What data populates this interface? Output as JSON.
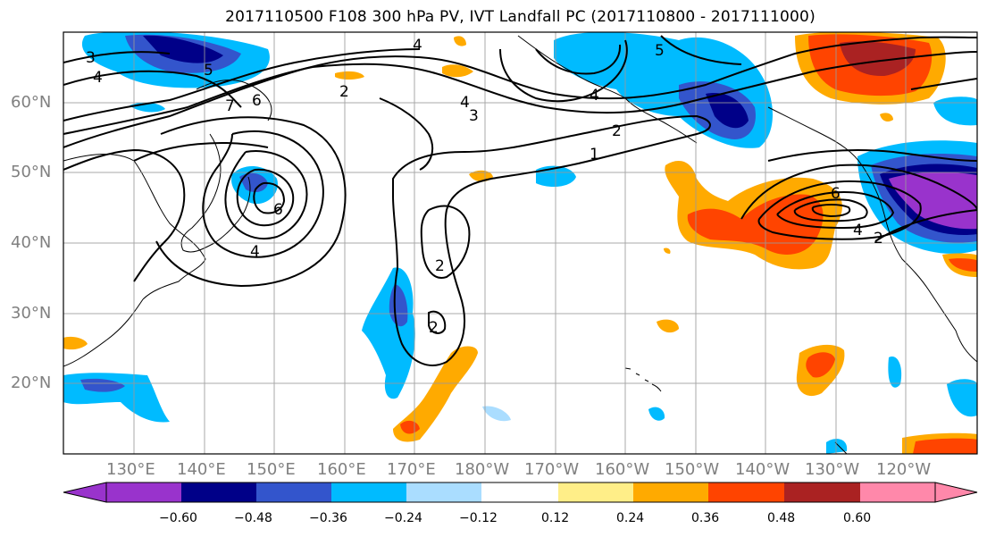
{
  "title": "2017110500 F108 300 hPa PV, IVT Landfall PC (2017110800 - 2017111000)",
  "map": {
    "lat_labels": [
      "60°N",
      "50°N",
      "40°N",
      "30°N",
      "20°N"
    ],
    "lon_labels": [
      "130°E",
      "140°E",
      "150°E",
      "160°E",
      "170°E",
      "180°W",
      "170°W",
      "160°W",
      "150°W",
      "140°W",
      "130°W",
      "120°W"
    ],
    "contour_labels": [
      "3",
      "4",
      "5",
      "4",
      "4",
      "5",
      "7",
      "2",
      "6",
      "4",
      "3",
      "2",
      "1",
      "4",
      "6",
      "2",
      "2",
      "6",
      "4",
      "2"
    ]
  },
  "colorbar": {
    "ticks": [
      "−0.60",
      "−0.48",
      "−0.36",
      "−0.24",
      "−0.12",
      "0.12",
      "0.24",
      "0.36",
      "0.48",
      "0.60"
    ],
    "colors": [
      "#9933cc",
      "#000088",
      "#3355cc",
      "#00bbff",
      "#aaddff",
      "#ffffff",
      "#ffee88",
      "#ffaa00",
      "#ff4400",
      "#aa2222",
      "#ff88aa"
    ]
  }
}
